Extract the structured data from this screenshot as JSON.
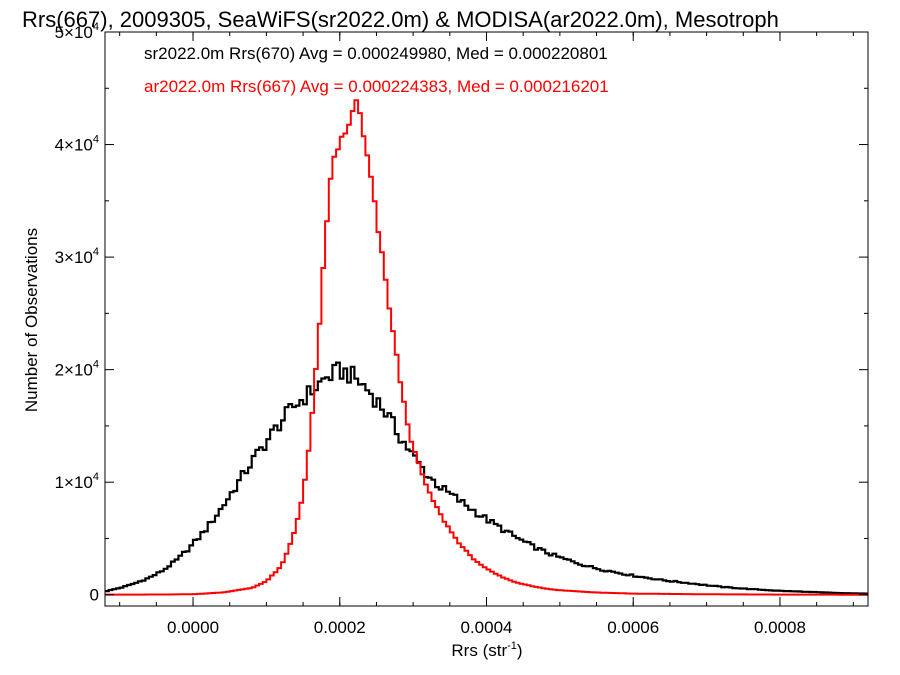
{
  "chart_data": {
    "type": "line",
    "step": true,
    "title": "Rrs(667), 2009305, SeaWiFS(sr2022.0m) & MODISA(ar2022.0m), Mesotroph",
    "xlabel": "Rrs (str",
    "xlabel_sup": "-1",
    "xlabel_close": ")",
    "ylabel": "Number of Observations",
    "xlim": [
      -0.00012,
      0.00092
    ],
    "ylim": [
      -1000,
      50000
    ],
    "x_ticks": [
      0,
      0.0002,
      0.0004,
      0.0006,
      0.0008
    ],
    "x_tick_labels": [
      "0.0000",
      "0.0002",
      "0.0004",
      "0.0006",
      "0.0008"
    ],
    "y_ticks": [
      0,
      10000,
      20000,
      30000,
      40000,
      50000
    ],
    "y_tick_labels": [
      {
        "base": "0",
        "exp": ""
      },
      {
        "base": "1×10",
        "exp": "4"
      },
      {
        "base": "2×10",
        "exp": "4"
      },
      {
        "base": "3×10",
        "exp": "4"
      },
      {
        "base": "4×10",
        "exp": "4"
      },
      {
        "base": "5×10",
        "exp": "4"
      }
    ],
    "bin_width": 5e-06,
    "annotations": [
      {
        "text": "sr2022.0m Rrs(670) Avg = 0.000249980, Med = 0.000220801",
        "color": "#000000"
      },
      {
        "text": "ar2022.0m Rrs(667) Avg = 0.000224383, Med = 0.000216201",
        "color": "#ff0000"
      }
    ],
    "series": [
      {
        "name": "sr2022.0m Rrs(670)",
        "color": "#000000",
        "points": [
          [
            -0.00012,
            300
          ],
          [
            -0.0001,
            600
          ],
          [
            -8e-05,
            1000
          ],
          [
            -6e-05,
            1500
          ],
          [
            -4e-05,
            2200
          ],
          [
            -2e-05,
            3200
          ],
          [
            0.0,
            4500
          ],
          [
            2e-05,
            6000
          ],
          [
            4e-05,
            7800
          ],
          [
            6e-05,
            9800
          ],
          [
            8e-05,
            11800
          ],
          [
            0.0001,
            13600
          ],
          [
            0.00012,
            15400
          ],
          [
            0.00014,
            16900
          ],
          [
            0.00016,
            18000
          ],
          [
            0.00018,
            19200
          ],
          [
            0.0002,
            19900
          ],
          [
            0.00021,
            19700
          ],
          [
            0.00022,
            19300
          ],
          [
            0.00024,
            18100
          ],
          [
            0.00026,
            16500
          ],
          [
            0.00028,
            14300
          ],
          [
            0.0003,
            12300
          ],
          [
            0.00032,
            10600
          ],
          [
            0.00034,
            9400
          ],
          [
            0.00036,
            8500
          ],
          [
            0.00038,
            7600
          ],
          [
            0.0004,
            6700
          ],
          [
            0.00042,
            5900
          ],
          [
            0.00044,
            5100
          ],
          [
            0.00046,
            4400
          ],
          [
            0.00048,
            3800
          ],
          [
            0.0005,
            3300
          ],
          [
            0.00052,
            2900
          ],
          [
            0.00054,
            2500
          ],
          [
            0.00056,
            2200
          ],
          [
            0.0006,
            1700
          ],
          [
            0.00064,
            1300
          ],
          [
            0.00068,
            1000
          ],
          [
            0.00072,
            700
          ],
          [
            0.00076,
            500
          ],
          [
            0.0008,
            350
          ],
          [
            0.00084,
            250
          ],
          [
            0.00088,
            150
          ],
          [
            0.00092,
            100
          ]
        ]
      },
      {
        "name": "ar2022.0m Rrs(667)",
        "color": "#ff0000",
        "points": [
          [
            -0.00012,
            10
          ],
          [
            -4e-05,
            20
          ],
          [
            0.0,
            50
          ],
          [
            4e-05,
            200
          ],
          [
            8e-05,
            600
          ],
          [
            0.0001,
            1200
          ],
          [
            0.00012,
            2500
          ],
          [
            0.00013,
            4000
          ],
          [
            0.00014,
            6000
          ],
          [
            0.00015,
            9000
          ],
          [
            0.00016,
            14000
          ],
          [
            0.00017,
            22000
          ],
          [
            0.00018,
            31000
          ],
          [
            0.00019,
            38500
          ],
          [
            0.0002,
            40200
          ],
          [
            0.00021,
            41000
          ],
          [
            0.000215,
            42500
          ],
          [
            0.00022,
            43900
          ],
          [
            0.000225,
            43500
          ],
          [
            0.00023,
            41500
          ],
          [
            0.00024,
            38000
          ],
          [
            0.00025,
            33500
          ],
          [
            0.00026,
            29000
          ],
          [
            0.00027,
            24500
          ],
          [
            0.00028,
            20000
          ],
          [
            0.00029,
            16000
          ],
          [
            0.0003,
            13000
          ],
          [
            0.00032,
            9300
          ],
          [
            0.00034,
            6800
          ],
          [
            0.00036,
            4800
          ],
          [
            0.00038,
            3300
          ],
          [
            0.0004,
            2300
          ],
          [
            0.00042,
            1600
          ],
          [
            0.00044,
            1100
          ],
          [
            0.00046,
            800
          ],
          [
            0.00048,
            550
          ],
          [
            0.0005,
            400
          ],
          [
            0.00055,
            200
          ],
          [
            0.0006,
            100
          ],
          [
            0.0007,
            40
          ],
          [
            0.0008,
            15
          ],
          [
            0.00092,
            5
          ]
        ]
      }
    ]
  }
}
